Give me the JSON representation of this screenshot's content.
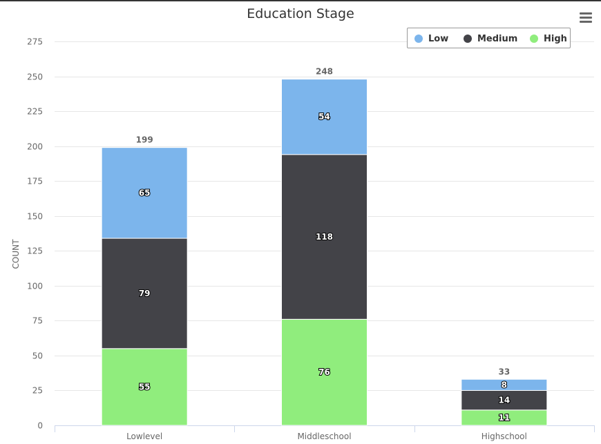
{
  "chart_data": {
    "type": "bar",
    "stacked": true,
    "title": "Education Stage",
    "xlabel": "",
    "ylabel": "COUNT",
    "categories": [
      "Lowlevel",
      "Middleschool",
      "Highschool"
    ],
    "series": [
      {
        "name": "Low",
        "color": "#7cb5ec",
        "values": [
          65,
          54,
          8
        ]
      },
      {
        "name": "Medium",
        "color": "#434348",
        "values": [
          79,
          118,
          14
        ]
      },
      {
        "name": "High",
        "color": "#90ed7d",
        "values": [
          55,
          76,
          11
        ]
      }
    ],
    "stack_order": [
      "High",
      "Medium",
      "Low"
    ],
    "totals": [
      199,
      248,
      33
    ],
    "ylim": [
      0,
      275
    ],
    "yticks": [
      0,
      25,
      50,
      75,
      100,
      125,
      150,
      175,
      200,
      225,
      250,
      275
    ],
    "grid": true,
    "legend_position": "top-right",
    "menu_icon": "hamburger-menu-icon"
  }
}
